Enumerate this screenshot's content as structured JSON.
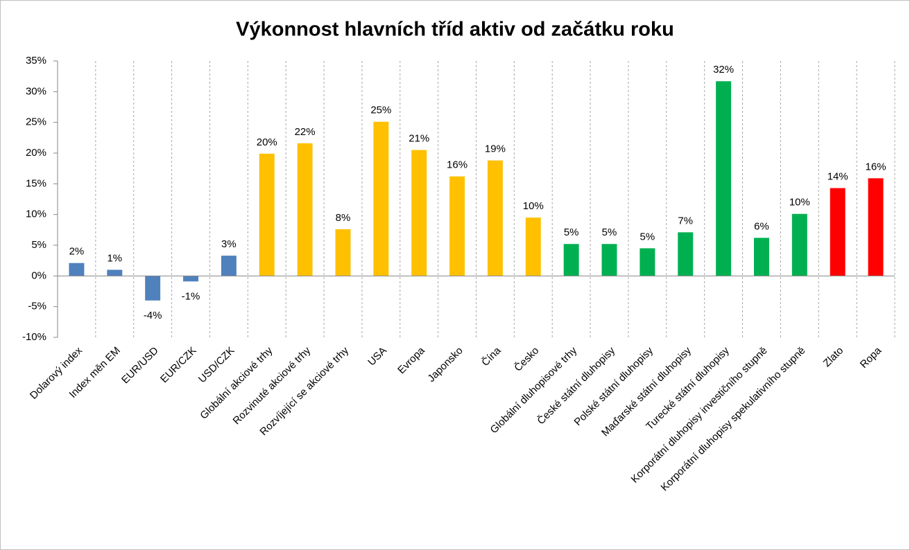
{
  "chart_data": {
    "type": "bar",
    "title": "Výkonnost hlavních tříd aktiv od začátku roku",
    "categories": [
      "Dolarový index",
      "Index měn EM",
      "EUR/USD",
      "EUR/CZK",
      "USD/CZK",
      "Globální akciové trhy",
      "Rozvinuté akciové trhy",
      "Rozvíjející se akciové trhy",
      "USA",
      "Evropa",
      "Japonsko",
      "Čína",
      "Česko",
      "Globální dluhopisové trhy",
      "České státní dluhopisy",
      "Polské státní dluhopisy",
      "Maďarské státní dluhopisy",
      "Turecké státní dluhopisy",
      "Korporátní dluhopisy investičního stupně",
      "Korporátní dluhopisy spekulativního stupně",
      "Zlato",
      "Ropa"
    ],
    "values": [
      2.1,
      1.0,
      -4.0,
      -0.9,
      3.3,
      19.9,
      21.6,
      7.6,
      25.1,
      20.5,
      16.2,
      18.8,
      9.5,
      5.2,
      5.2,
      4.5,
      7.1,
      31.7,
      6.2,
      10.1,
      14.3,
      15.9
    ],
    "value_labels": [
      "2%",
      "1%",
      "-4%",
      "-1%",
      "3%",
      "20%",
      "22%",
      "8%",
      "25%",
      "21%",
      "16%",
      "19%",
      "10%",
      "5%",
      "5%",
      "5%",
      "7%",
      "32%",
      "6%",
      "10%",
      "14%",
      "16%"
    ],
    "colors": [
      "#4f81bd",
      "#4f81bd",
      "#4f81bd",
      "#4f81bd",
      "#4f81bd",
      "#ffc000",
      "#ffc000",
      "#ffc000",
      "#ffc000",
      "#ffc000",
      "#ffc000",
      "#ffc000",
      "#ffc000",
      "#00b050",
      "#00b050",
      "#00b050",
      "#00b050",
      "#00b050",
      "#00b050",
      "#00b050",
      "#ff0000",
      "#ff0000"
    ],
    "ylim": [
      -10,
      35
    ],
    "yticks": [
      {
        "value": -10,
        "label": "-10%"
      },
      {
        "value": -5,
        "label": "-5%"
      },
      {
        "value": 0,
        "label": "0%"
      },
      {
        "value": 5,
        "label": "5%"
      },
      {
        "value": 10,
        "label": "10%"
      },
      {
        "value": 15,
        "label": "15%"
      },
      {
        "value": 20,
        "label": "20%"
      },
      {
        "value": 25,
        "label": "25%"
      },
      {
        "value": 30,
        "label": "30%"
      },
      {
        "value": 35,
        "label": "35%"
      }
    ],
    "vertical_grid": true
  }
}
